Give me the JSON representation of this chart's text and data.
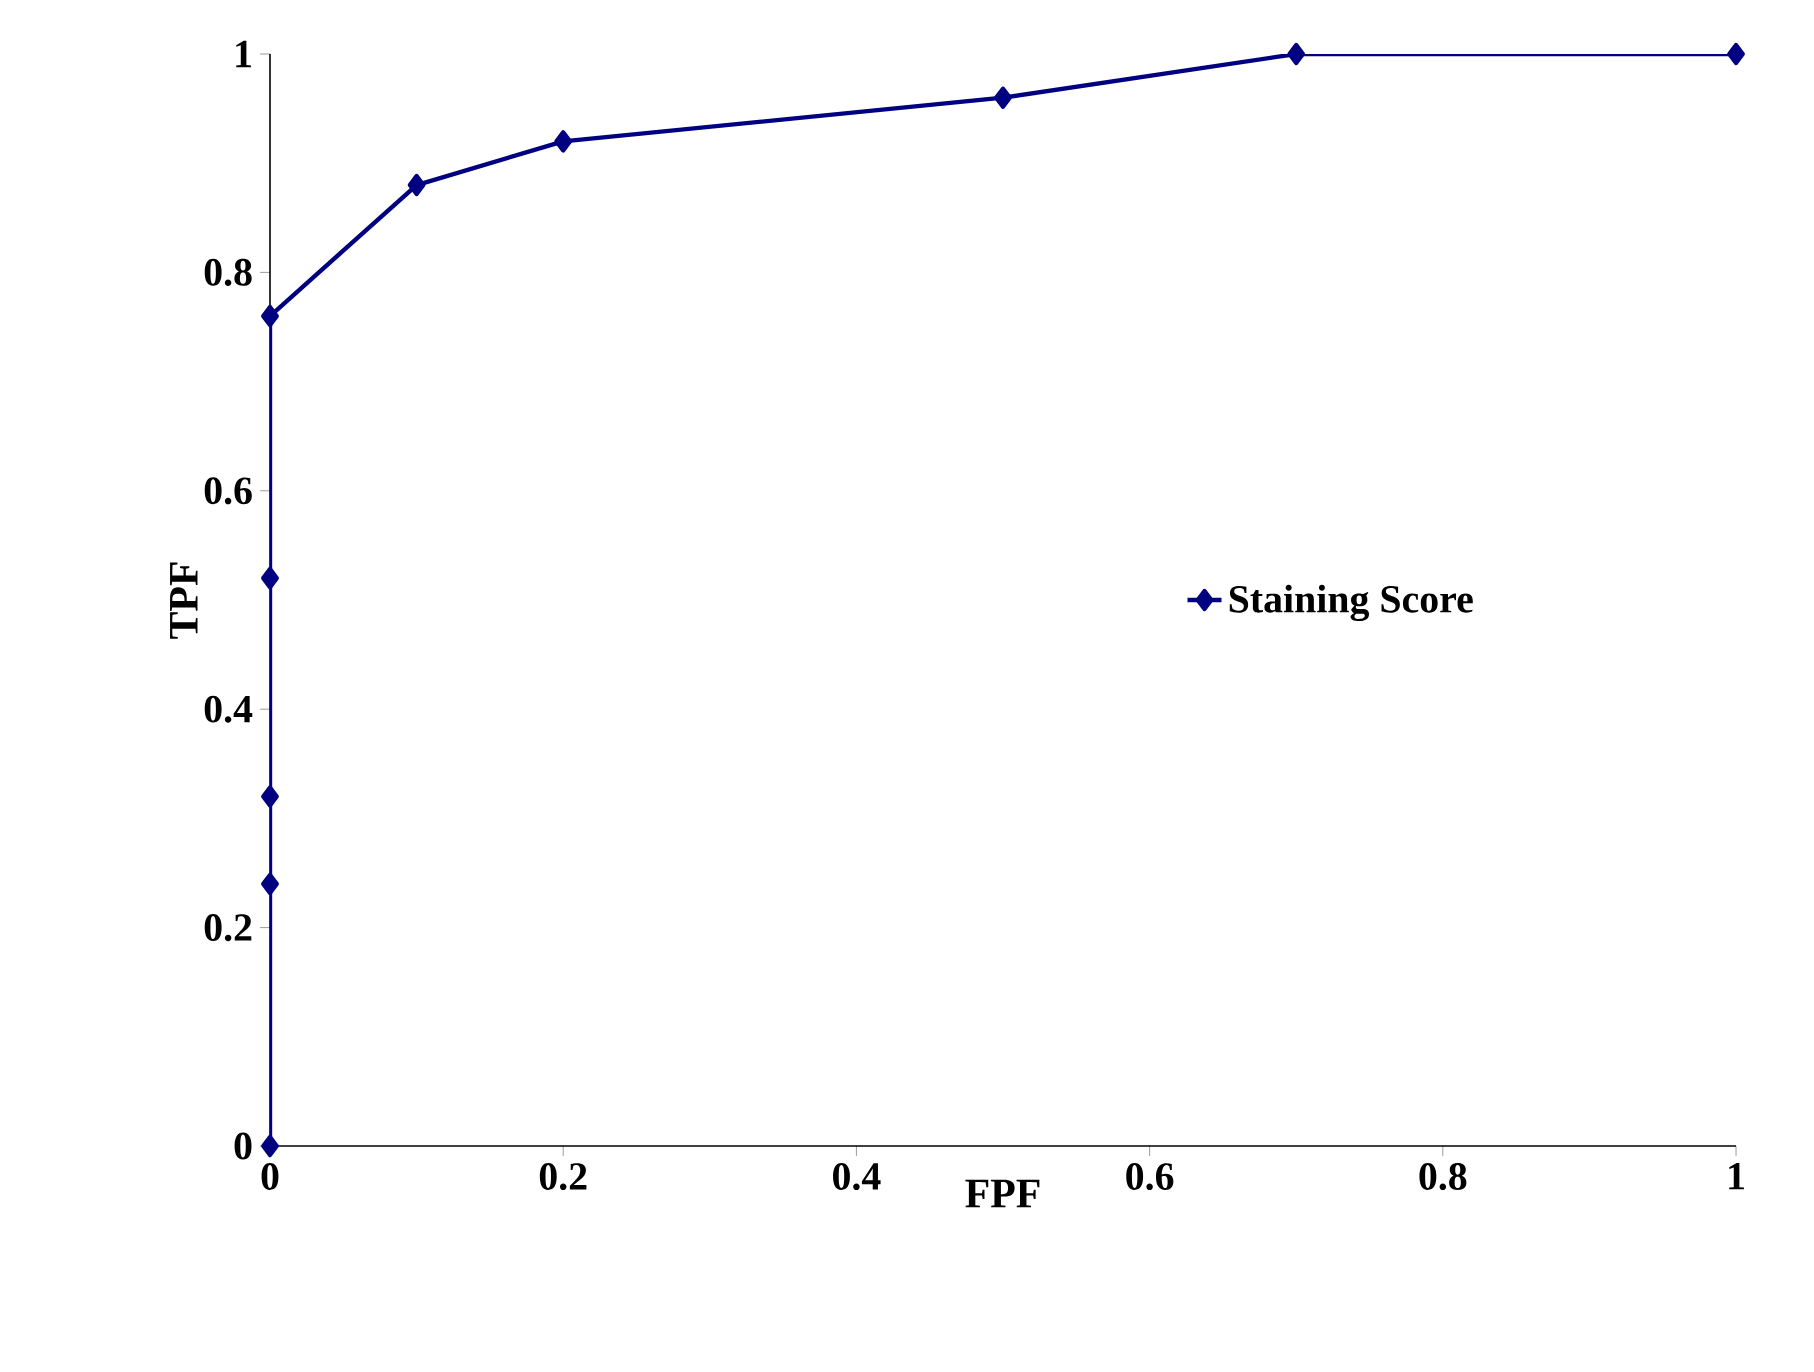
{
  "chart_data": {
    "type": "line",
    "xlabel": "FPF",
    "ylabel": "TPF",
    "series": [
      {
        "name": "Staining Score",
        "color": "#000080",
        "x": [
          0,
          0,
          0,
          0,
          0,
          0.1,
          0.2,
          0.5,
          0.7,
          1
        ],
        "values": [
          0,
          0.24,
          0.32,
          0.52,
          0.76,
          0.88,
          0.92,
          0.96,
          1,
          1
        ]
      }
    ],
    "xlim": [
      0,
      1
    ],
    "ylim": [
      0,
      1
    ],
    "xticks": [
      0,
      0.2,
      0.4,
      0.6,
      0.8,
      1
    ],
    "yticks": [
      0,
      0.2,
      0.4,
      0.6,
      0.8,
      1
    ],
    "marker": "diamond",
    "line_style": "solid",
    "grid": false,
    "legend": "right"
  }
}
